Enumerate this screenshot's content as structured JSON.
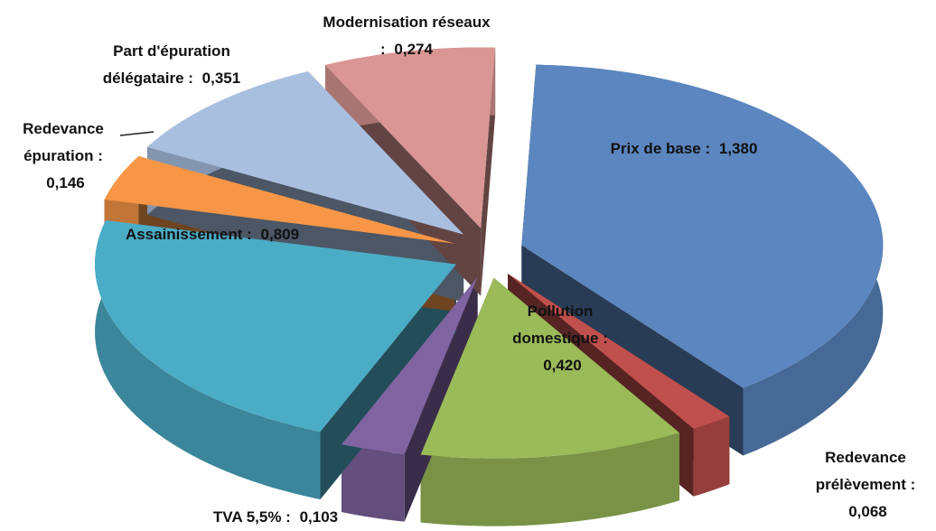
{
  "chart_data": {
    "type": "pie",
    "categories": [
      "Prix de base :",
      "Redevance prélèvement :",
      "Pollution domestique :",
      "TVA 5,5% :",
      "Assainissement :",
      "Redevance épuration :",
      "Part d'épuration délégataire :",
      "Modernisation réseaux :"
    ],
    "values": [
      1.38,
      0.068,
      0.42,
      0.103,
      0.809,
      0.146,
      0.351,
      0.274
    ],
    "value_labels": [
      "1,380",
      "0,068",
      "0,420",
      "0,103",
      "0,809",
      "0,146",
      "0,351",
      "0,274"
    ],
    "colors": [
      "#5b86bf",
      "#c0504d",
      "#9bbb59",
      "#8064a2",
      "#4bacc6",
      "#f79646",
      "#a9bfe0",
      "#d99694"
    ]
  }
}
